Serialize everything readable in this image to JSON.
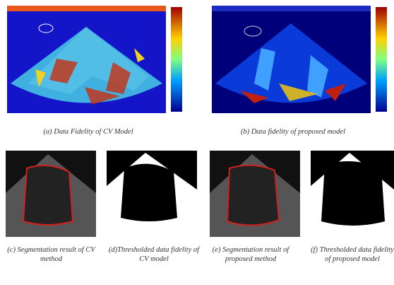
{
  "figure": {
    "captions": {
      "a": "(a) Data Fidelity of CV Model",
      "b": "(b) Data fidelity of proposed model",
      "c": "(c) Segmentation result of CV method",
      "d": "(d)Thresholded data fidelity of CV model",
      "e": "(e) Segmentation result of proposed method",
      "f": "(f) Thresholded data fidelity of proposed model"
    }
  }
}
